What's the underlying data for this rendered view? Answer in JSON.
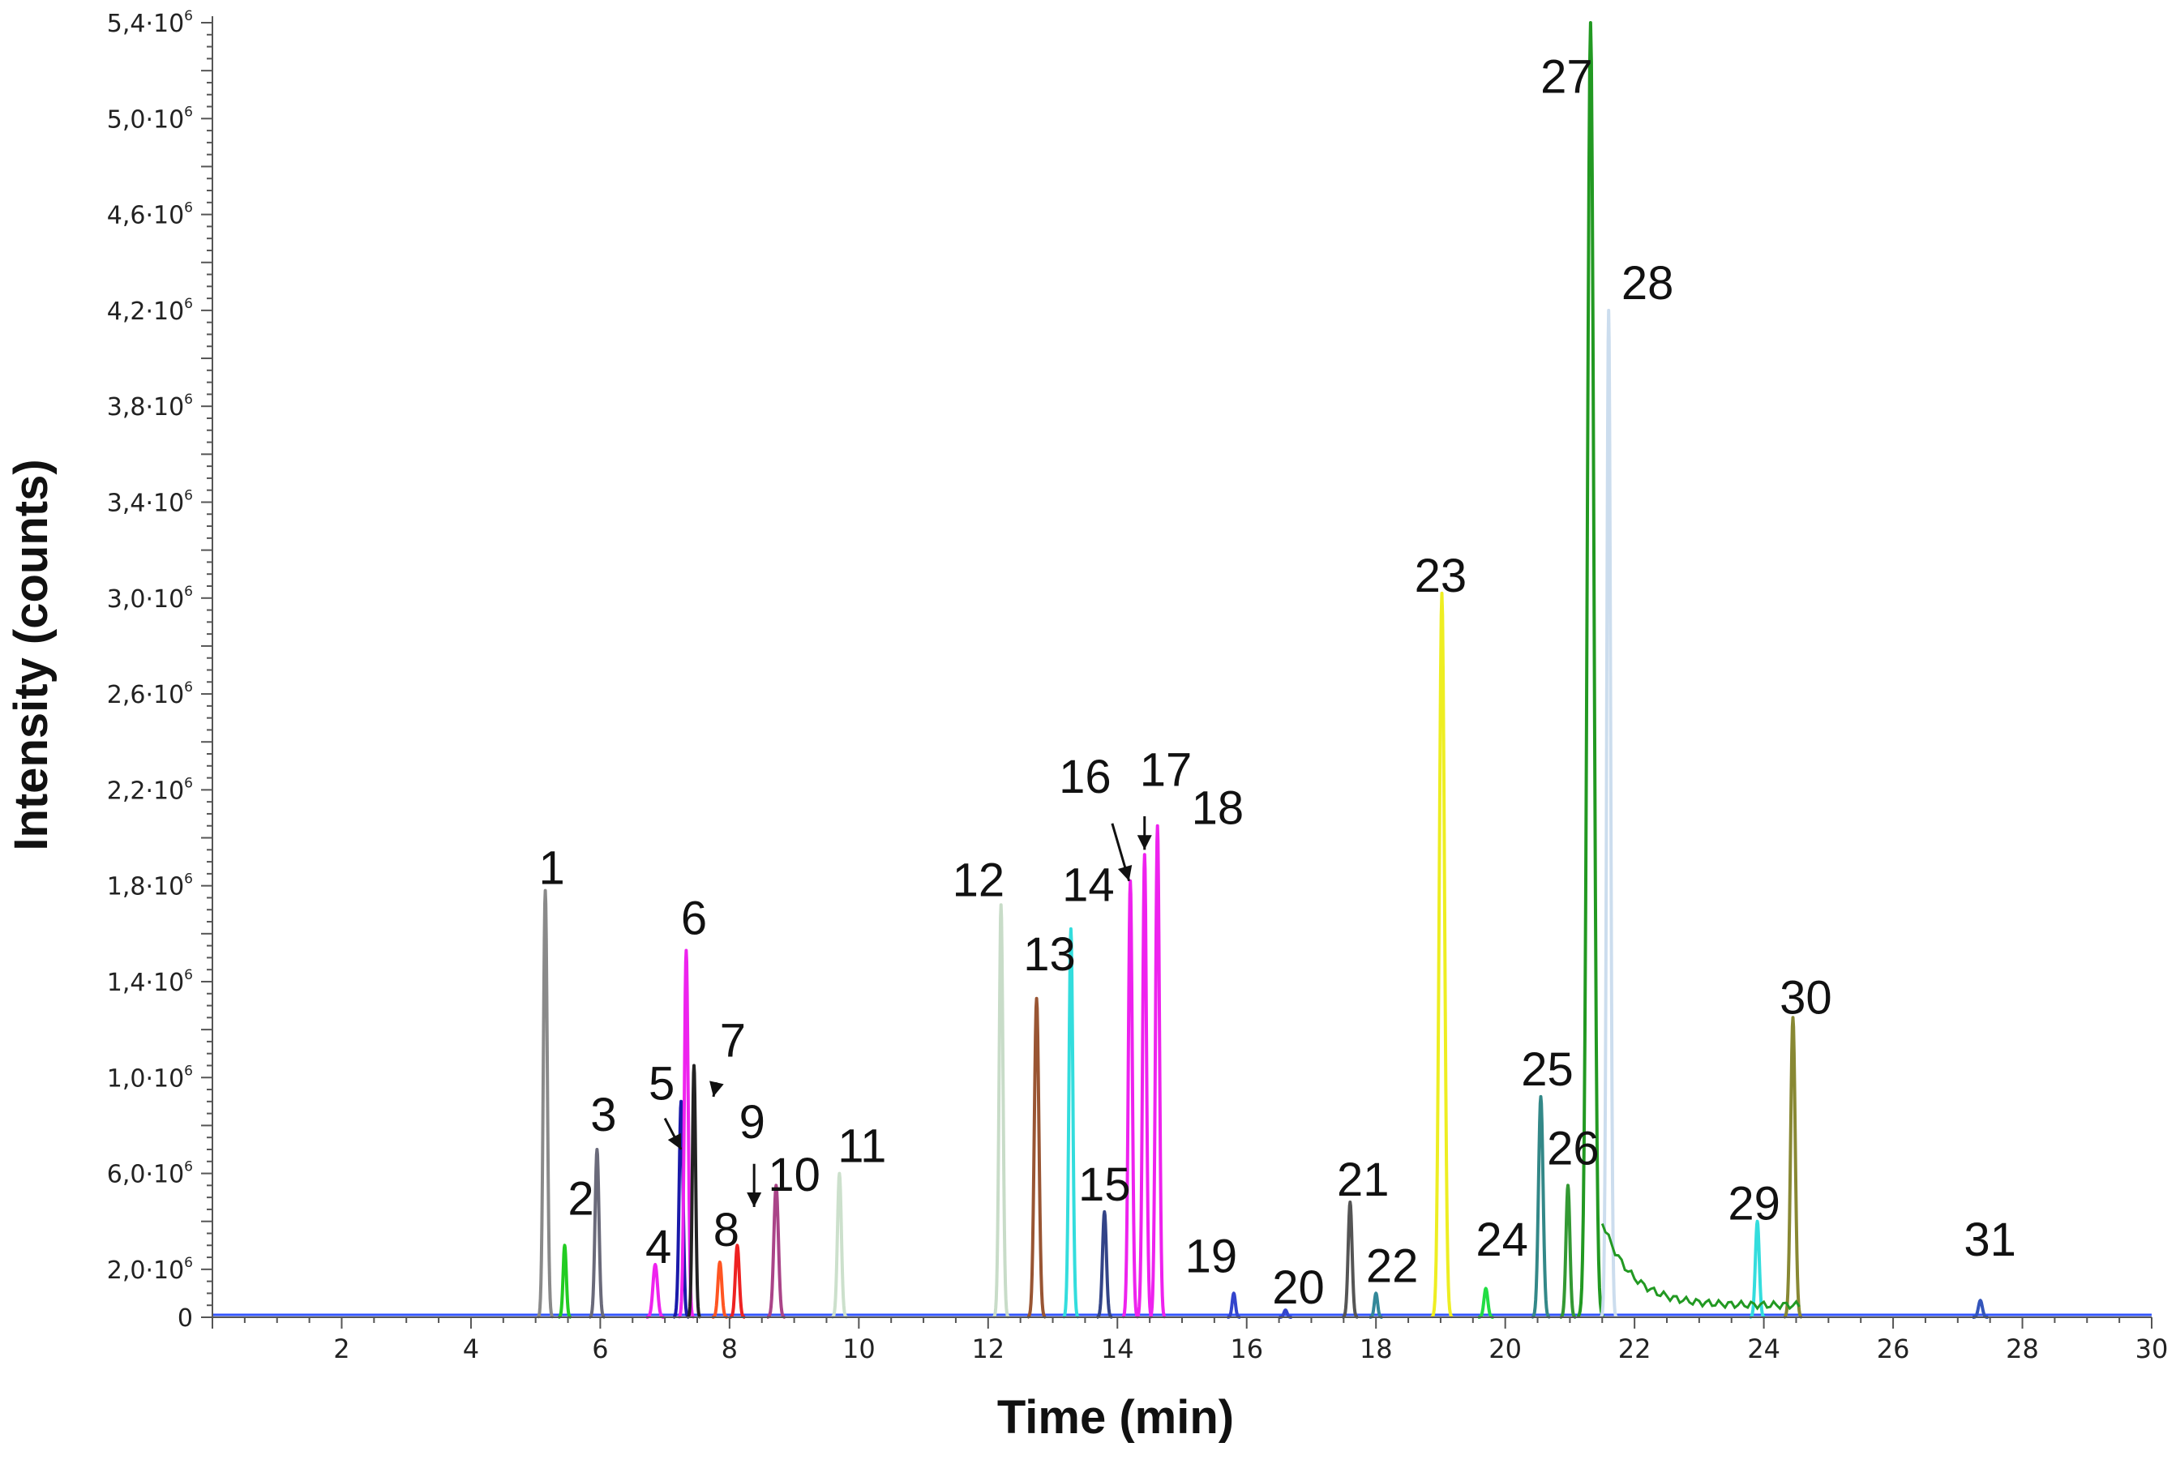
{
  "chart_data": {
    "type": "line",
    "title": "",
    "xlabel": "Time (min)",
    "ylabel": "Intensity (counts)",
    "xlim": [
      0,
      30
    ],
    "ylim": [
      0,
      5.4
    ],
    "y_unit_exponent": "6",
    "x_ticks": [
      {
        "value": 2,
        "label": "2"
      },
      {
        "value": 4,
        "label": "4"
      },
      {
        "value": 6,
        "label": "6"
      },
      {
        "value": 8,
        "label": "8"
      },
      {
        "value": 10,
        "label": "10"
      },
      {
        "value": 12,
        "label": "12"
      },
      {
        "value": 14,
        "label": "14"
      },
      {
        "value": 16,
        "label": "16"
      },
      {
        "value": 18,
        "label": "18"
      },
      {
        "value": 20,
        "label": "20"
      },
      {
        "value": 22,
        "label": "22"
      },
      {
        "value": 24,
        "label": "24"
      },
      {
        "value": 26,
        "label": "26"
      },
      {
        "value": 28,
        "label": "28"
      },
      {
        "value": 30,
        "label": "30"
      }
    ],
    "y_ticks": [
      {
        "value": 0,
        "label": "0"
      },
      {
        "value": 0.2,
        "label": "2,0·10"
      },
      {
        "value": 0.6,
        "label": "6,0·10"
      },
      {
        "value": 1.0,
        "label": "1,0·10"
      },
      {
        "value": 1.4,
        "label": "1,4·10"
      },
      {
        "value": 1.8,
        "label": "1,8·10"
      },
      {
        "value": 2.2,
        "label": "2,2·10"
      },
      {
        "value": 2.6,
        "label": "2,6·10"
      },
      {
        "value": 3.0,
        "label": "3,0·10"
      },
      {
        "value": 3.4,
        "label": "3,4·10"
      },
      {
        "value": 3.8,
        "label": "3,8·10"
      },
      {
        "value": 4.2,
        "label": "4,2·10"
      },
      {
        "value": 4.6,
        "label": "4,6·10"
      },
      {
        "value": 5.0,
        "label": "5,0·10"
      },
      {
        "value": 5.4,
        "label": "5,4·10"
      }
    ],
    "peaks": [
      {
        "id": "1",
        "time": 5.15,
        "height": 1.78,
        "width": 0.06,
        "color": "#8a8a8a"
      },
      {
        "id": "2",
        "time": 5.45,
        "height": 0.3,
        "width": 0.05,
        "color": "#22cc22"
      },
      {
        "id": "3",
        "time": 5.95,
        "height": 0.7,
        "width": 0.06,
        "color": "#6a6a7a"
      },
      {
        "id": "4",
        "time": 6.85,
        "height": 0.22,
        "width": 0.07,
        "color": "#ee22ee"
      },
      {
        "id": "5",
        "time": 7.25,
        "height": 0.9,
        "width": 0.06,
        "color": "#1a1aaa"
      },
      {
        "id": "6",
        "time": 7.33,
        "height": 1.53,
        "width": 0.06,
        "color": "#ee22ee"
      },
      {
        "id": "7",
        "time": 7.45,
        "height": 1.05,
        "width": 0.05,
        "color": "#222222"
      },
      {
        "id": "8",
        "time": 7.85,
        "height": 0.23,
        "width": 0.06,
        "color": "#ff5522"
      },
      {
        "id": "9",
        "time": 8.12,
        "height": 0.3,
        "width": 0.06,
        "color": "#ee2222"
      },
      {
        "id": "10",
        "time": 8.72,
        "height": 0.55,
        "width": 0.07,
        "color": "#aa4488"
      },
      {
        "id": "11",
        "time": 9.7,
        "height": 0.6,
        "width": 0.06,
        "color": "#cce0cc"
      },
      {
        "id": "12",
        "time": 12.2,
        "height": 1.72,
        "width": 0.06,
        "color": "#c8dcc8"
      },
      {
        "id": "13",
        "time": 12.75,
        "height": 1.33,
        "width": 0.07,
        "color": "#995533"
      },
      {
        "id": "14",
        "time": 13.28,
        "height": 1.62,
        "width": 0.06,
        "color": "#33dddd"
      },
      {
        "id": "15",
        "time": 13.8,
        "height": 0.44,
        "width": 0.06,
        "color": "#334488"
      },
      {
        "id": "16",
        "time": 14.2,
        "height": 1.82,
        "width": 0.06,
        "color": "#ee22ee"
      },
      {
        "id": "17",
        "time": 14.42,
        "height": 1.93,
        "width": 0.06,
        "color": "#ee22ee"
      },
      {
        "id": "18",
        "time": 14.62,
        "height": 2.05,
        "width": 0.06,
        "color": "#ee22ee"
      },
      {
        "id": "19",
        "time": 15.8,
        "height": 0.1,
        "width": 0.05,
        "color": "#3344cc"
      },
      {
        "id": "20",
        "time": 16.6,
        "height": 0.03,
        "width": 0.05,
        "color": "#3344cc"
      },
      {
        "id": "21",
        "time": 17.6,
        "height": 0.48,
        "width": 0.06,
        "color": "#555555"
      },
      {
        "id": "22",
        "time": 18.0,
        "height": 0.1,
        "width": 0.05,
        "color": "#338899"
      },
      {
        "id": "23",
        "time": 19.02,
        "height": 3.02,
        "width": 0.08,
        "color": "#eeee22"
      },
      {
        "id": "24",
        "time": 19.7,
        "height": 0.12,
        "width": 0.06,
        "color": "#22dd44"
      },
      {
        "id": "25",
        "time": 20.55,
        "height": 0.92,
        "width": 0.07,
        "color": "#338888"
      },
      {
        "id": "26",
        "time": 20.97,
        "height": 0.55,
        "width": 0.06,
        "color": "#339933"
      },
      {
        "id": "27",
        "time": 21.32,
        "height": 5.4,
        "width": 0.1,
        "color": "#229922"
      },
      {
        "id": "28",
        "time": 21.6,
        "height": 4.2,
        "width": 0.06,
        "color": "#ccddee"
      },
      {
        "id": "29",
        "time": 23.9,
        "height": 0.4,
        "width": 0.06,
        "color": "#33dddd"
      },
      {
        "id": "30",
        "time": 24.45,
        "height": 1.25,
        "width": 0.07,
        "color": "#888833"
      },
      {
        "id": "31",
        "time": 27.35,
        "height": 0.07,
        "width": 0.06,
        "color": "#3355bb"
      }
    ],
    "annotations": [
      {
        "text": "1",
        "x": 5.25,
        "y": 1.78
      },
      {
        "text": "2",
        "x": 5.7,
        "y": 0.4
      },
      {
        "text": "3",
        "x": 6.05,
        "y": 0.75
      },
      {
        "text": "4",
        "x": 6.9,
        "y": 0.2
      },
      {
        "text": "5",
        "x": 6.95,
        "y": 0.88
      },
      {
        "text": "6",
        "x": 7.45,
        "y": 1.57
      },
      {
        "text": "7",
        "x": 8.05,
        "y": 1.06
      },
      {
        "text": "8",
        "x": 7.95,
        "y": 0.27
      },
      {
        "text": "9",
        "x": 8.35,
        "y": 0.72
      },
      {
        "text": "10",
        "x": 9.0,
        "y": 0.5
      },
      {
        "text": "11",
        "x": 10.05,
        "y": 0.62
      },
      {
        "text": "12",
        "x": 11.85,
        "y": 1.73
      },
      {
        "text": "13",
        "x": 12.95,
        "y": 1.42
      },
      {
        "text": "14",
        "x": 13.55,
        "y": 1.71
      },
      {
        "text": "15",
        "x": 13.8,
        "y": 0.46
      },
      {
        "text": "16",
        "x": 13.5,
        "y": 2.16
      },
      {
        "text": "17",
        "x": 14.75,
        "y": 2.19
      },
      {
        "text": "18",
        "x": 15.55,
        "y": 2.03
      },
      {
        "text": "19",
        "x": 15.45,
        "y": 0.16
      },
      {
        "text": "20",
        "x": 16.8,
        "y": 0.03
      },
      {
        "text": "21",
        "x": 17.8,
        "y": 0.48
      },
      {
        "text": "22",
        "x": 18.25,
        "y": 0.12
      },
      {
        "text": "23",
        "x": 19.0,
        "y": 3.0
      },
      {
        "text": "24",
        "x": 19.95,
        "y": 0.23
      },
      {
        "text": "25",
        "x": 20.65,
        "y": 0.94
      },
      {
        "text": "26",
        "x": 21.05,
        "y": 0.61
      },
      {
        "text": "27",
        "x": 20.95,
        "y": 5.08
      },
      {
        "text": "28",
        "x": 22.2,
        "y": 4.22
      },
      {
        "text": "29",
        "x": 23.85,
        "y": 0.38
      },
      {
        "text": "30",
        "x": 24.65,
        "y": 1.24
      },
      {
        "text": "31",
        "x": 27.5,
        "y": 0.23
      }
    ],
    "arrows": [
      {
        "from": [
          7.0,
          0.83
        ],
        "to": [
          7.25,
          0.7
        ],
        "target": "5"
      },
      {
        "from": [
          7.8,
          0.98
        ],
        "to": [
          7.75,
          0.92
        ],
        "target": "7"
      },
      {
        "from": [
          8.38,
          0.64
        ],
        "to": [
          8.38,
          0.46
        ],
        "target": "9"
      },
      {
        "from": [
          13.92,
          2.06
        ],
        "to": [
          14.18,
          1.82
        ],
        "target": "16"
      },
      {
        "from": [
          14.42,
          2.09
        ],
        "to": [
          14.42,
          1.95
        ],
        "target": "17"
      }
    ]
  }
}
